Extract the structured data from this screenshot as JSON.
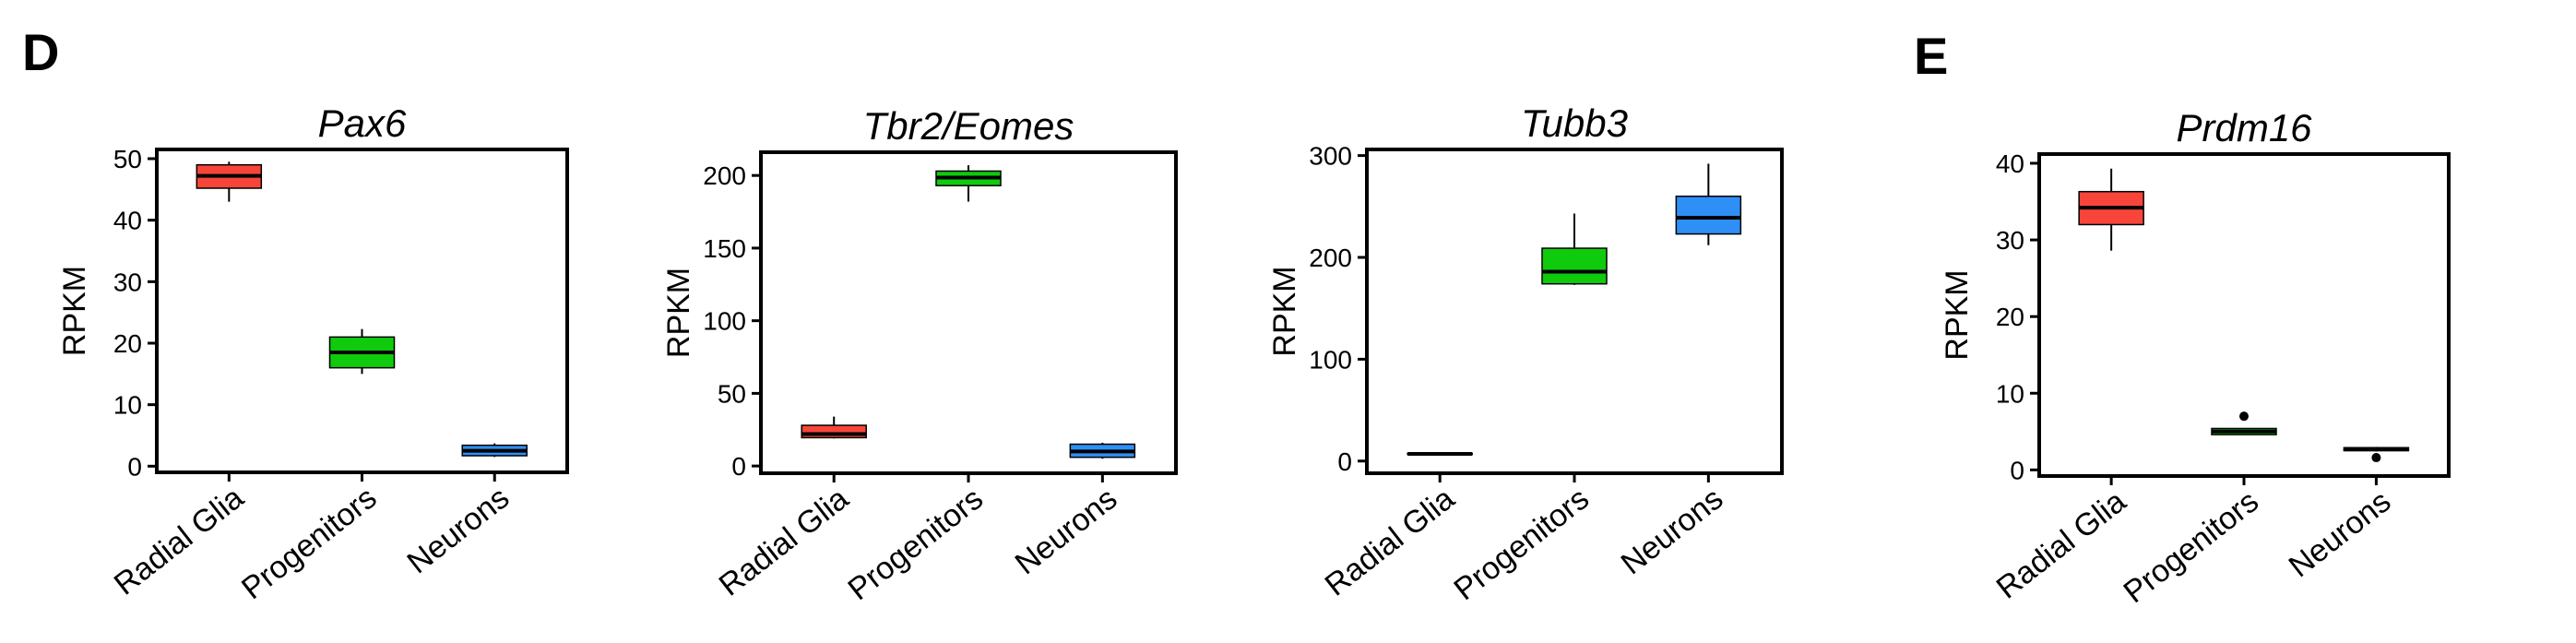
{
  "panel_labels": [
    "D",
    "E"
  ],
  "chart_data": [
    {
      "type": "box",
      "title": "Pax6",
      "ylabel": "RPKM",
      "ylim": [
        -1,
        51.5
      ],
      "yticks": [
        0,
        10,
        20,
        30,
        40,
        50
      ],
      "categories": [
        "Radial Glia",
        "Progenitors",
        "Neurons"
      ],
      "colors": [
        "#f8453a",
        "#0fcb0c",
        "#2e8ff6"
      ],
      "boxes": [
        {
          "min": 43,
          "q1": 45.2,
          "median": 47.2,
          "q3": 49,
          "max": 49.5,
          "outliers": []
        },
        {
          "min": 15,
          "q1": 16,
          "median": 18.5,
          "q3": 21,
          "max": 22.3,
          "outliers": []
        },
        {
          "min": 1.5,
          "q1": 1.7,
          "median": 2.5,
          "q3": 3.4,
          "max": 3.7,
          "outliers": []
        }
      ]
    },
    {
      "type": "box",
      "title": "Tbr2/Eomes",
      "ylabel": "RPKM",
      "ylim": [
        -5,
        216
      ],
      "yticks": [
        0,
        50,
        100,
        150,
        200
      ],
      "categories": [
        "Radial Glia",
        "Progenitors",
        "Neurons"
      ],
      "colors": [
        "#f8453a",
        "#0fcb0c",
        "#2e8ff6"
      ],
      "boxes": [
        {
          "min": 19,
          "q1": 19.5,
          "median": 22,
          "q3": 28,
          "max": 34,
          "outliers": []
        },
        {
          "min": 182,
          "q1": 193,
          "median": 198.5,
          "q3": 203,
          "max": 207,
          "outliers": []
        },
        {
          "min": 5,
          "q1": 6,
          "median": 10,
          "q3": 15,
          "max": 16,
          "outliers": []
        }
      ]
    },
    {
      "type": "box",
      "title": "Tubb3",
      "ylabel": "RPKM",
      "ylim": [
        -12,
        306
      ],
      "yticks": [
        0,
        100,
        200,
        300
      ],
      "categories": [
        "Radial Glia",
        "Progenitors",
        "Neurons"
      ],
      "colors": [
        "#f8453a",
        "#0fcb0c",
        "#2e8ff6"
      ],
      "boxes": [
        {
          "min": 6,
          "q1": 6.5,
          "median": 7,
          "q3": 7.5,
          "max": 8,
          "outliers": []
        },
        {
          "min": 173,
          "q1": 174,
          "median": 186,
          "q3": 209,
          "max": 243,
          "outliers": []
        },
        {
          "min": 212,
          "q1": 223,
          "median": 239,
          "q3": 260,
          "max": 292,
          "outliers": []
        }
      ]
    },
    {
      "type": "box",
      "title": "Prdm16",
      "ylabel": "RPKM",
      "ylim": [
        -0.8,
        41.2
      ],
      "yticks": [
        0,
        10,
        20,
        30,
        40
      ],
      "categories": [
        "Radial Glia",
        "Progenitors",
        "Neurons"
      ],
      "colors": [
        "#f8453a",
        "#0fcb0c",
        "#2e8ff6"
      ],
      "boxes": [
        {
          "min": 28.6,
          "q1": 32,
          "median": 34.2,
          "q3": 36.3,
          "max": 39.3,
          "outliers": []
        },
        {
          "min": 4.6,
          "q1": 4.6,
          "median": 5.0,
          "q3": 5.4,
          "max": 5.4,
          "outliers": [
            7.0
          ]
        },
        {
          "min": 2.4,
          "q1": 2.5,
          "median": 2.7,
          "q3": 2.9,
          "max": 3.0,
          "outliers": [
            1.6
          ]
        }
      ]
    }
  ]
}
